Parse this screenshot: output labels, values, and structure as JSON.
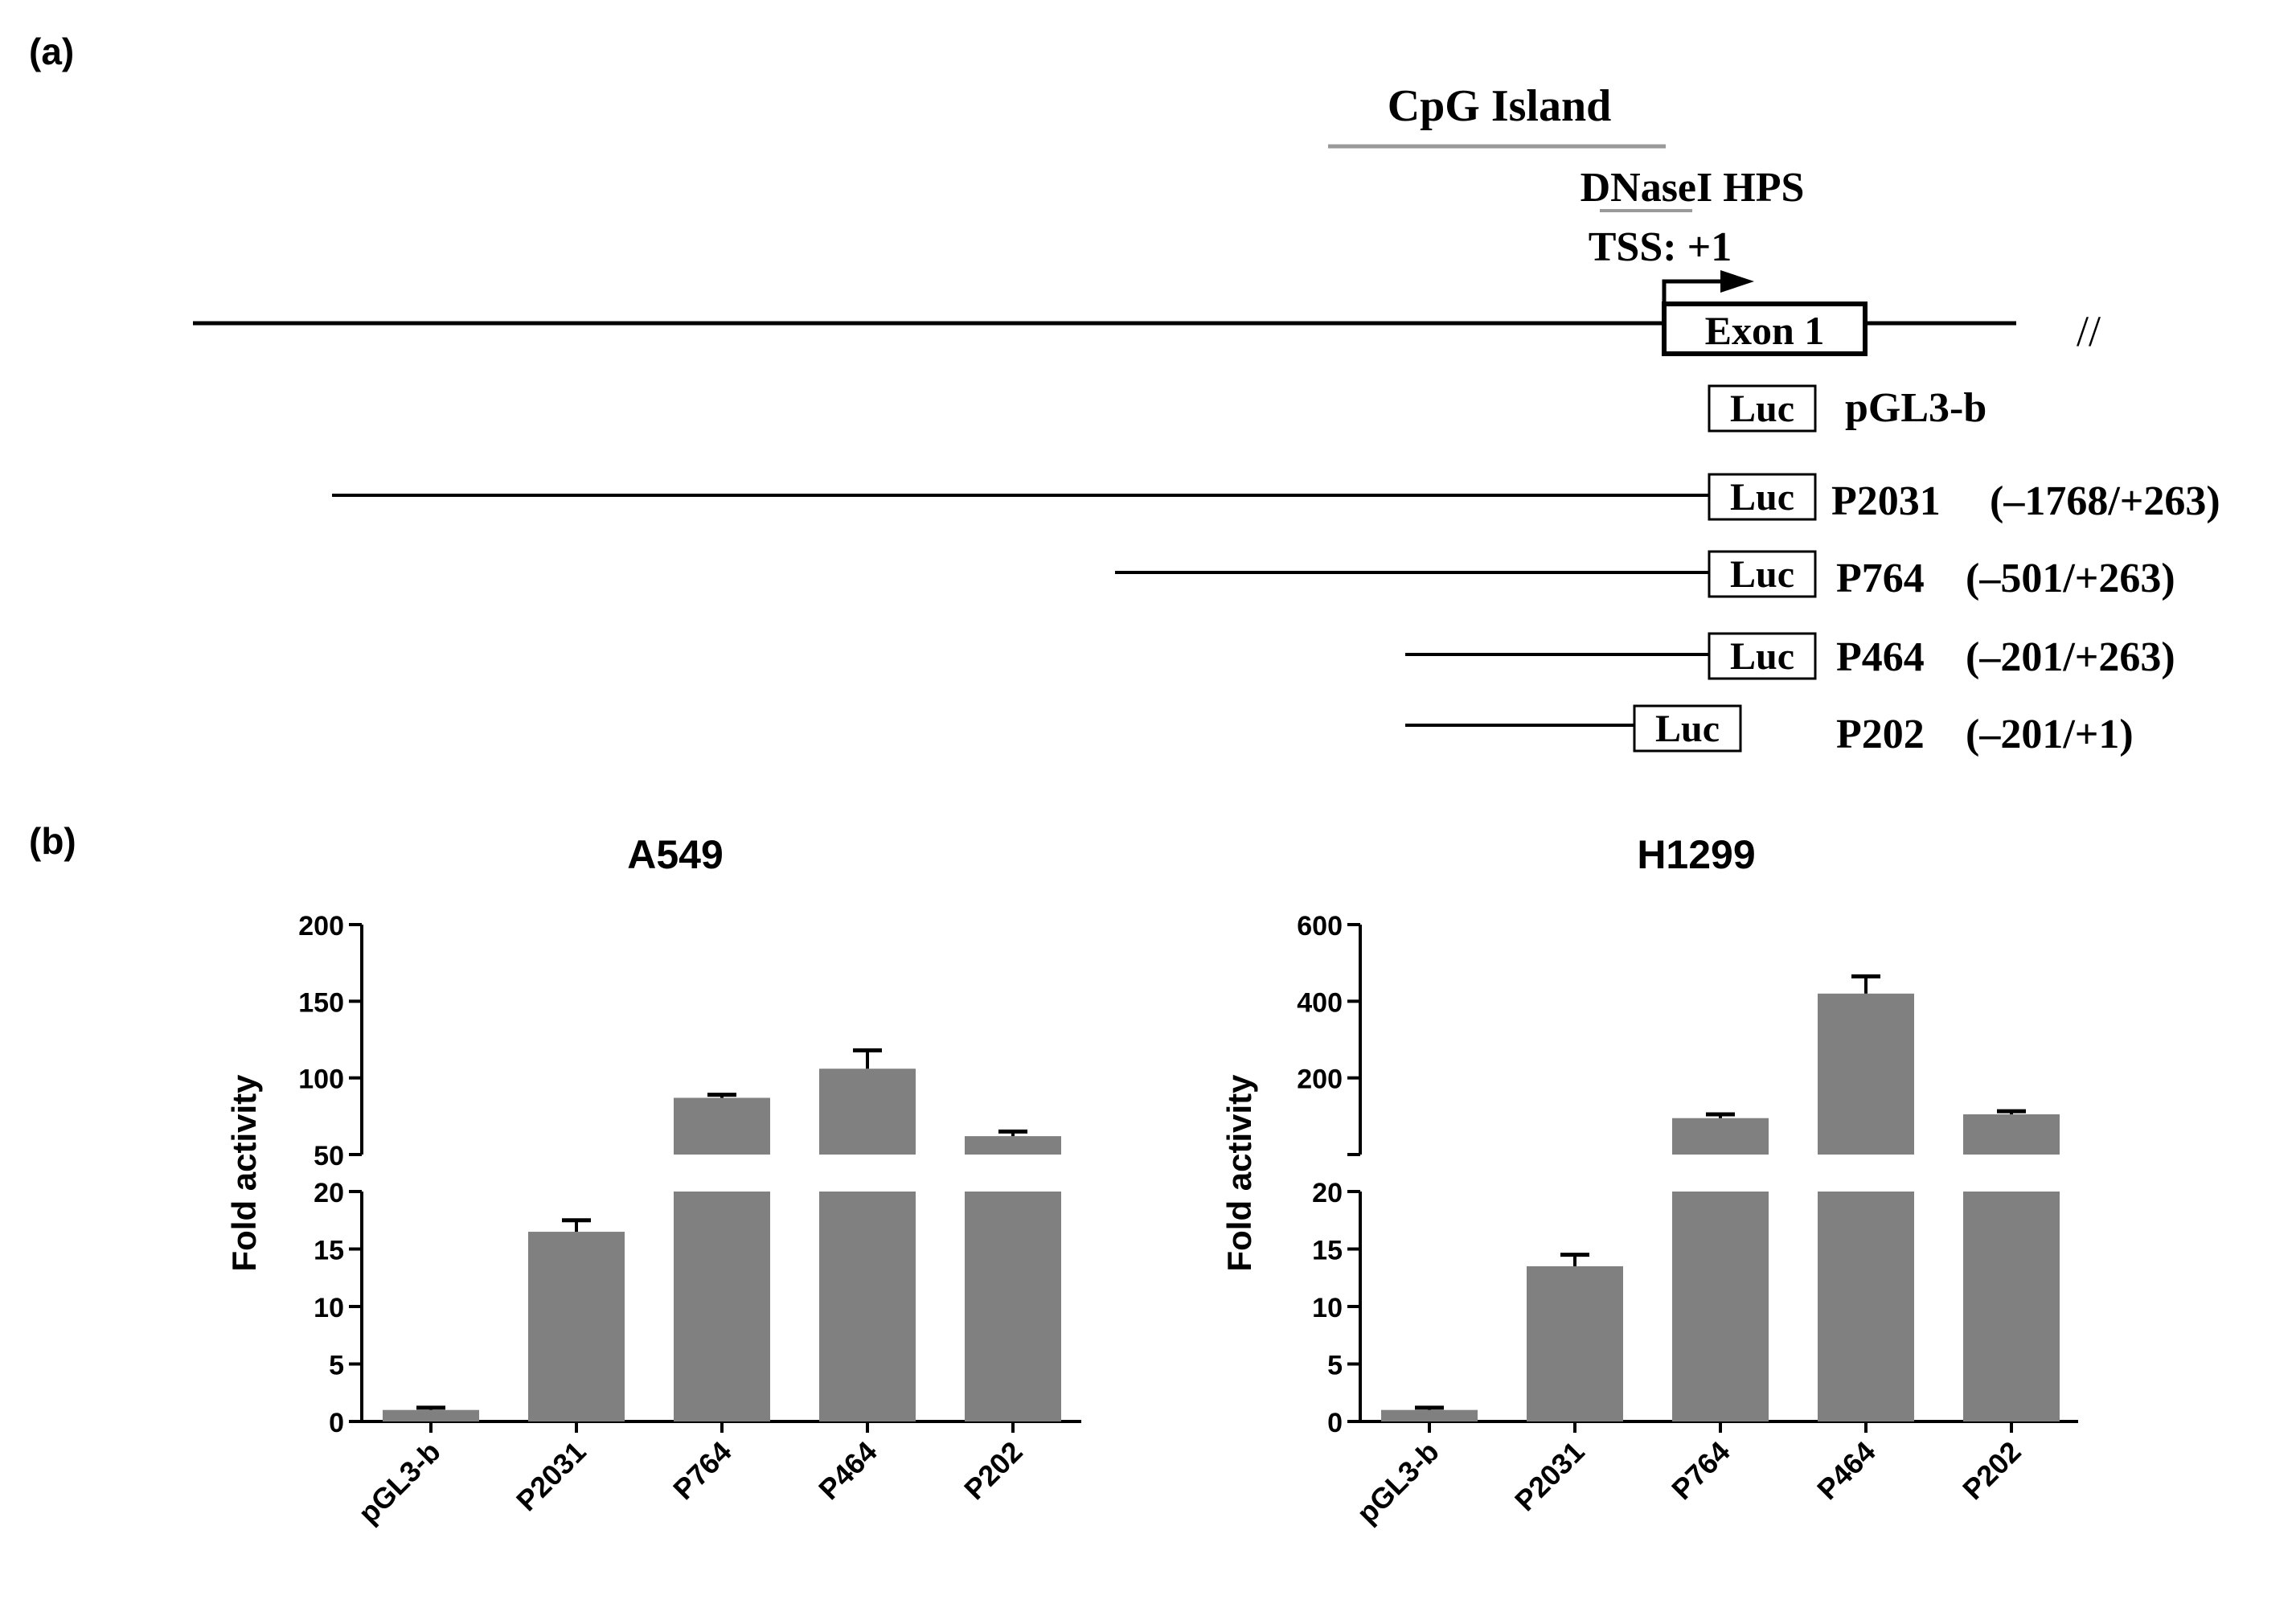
{
  "panel_a": {
    "label": "(a)",
    "cpg_label": "CpG Island",
    "dnase_label": "DNaseI HPS",
    "tss_label": "TSS: +1",
    "exon_label": "Exon 1",
    "break_mark": "//",
    "constructs": [
      {
        "box": "Luc",
        "name": "pGL3-b",
        "range": ""
      },
      {
        "box": "Luc",
        "name": "P2031",
        "range": "(–1768/+263)"
      },
      {
        "box": "Luc",
        "name": "P764",
        "range": "(–501/+263)"
      },
      {
        "box": "Luc",
        "name": "P464",
        "range": "(–201/+263)"
      },
      {
        "box": "Luc",
        "name": "P202",
        "range": "(–201/+1)"
      }
    ]
  },
  "panel_b": {
    "label": "(b)"
  },
  "chart_data": [
    {
      "type": "bar",
      "title": "A549",
      "ylabel": "Fold activity",
      "categories": [
        "pGL3-b",
        "P2031",
        "P764",
        "P464",
        "P202"
      ],
      "values": [
        1,
        16.5,
        87,
        106,
        62
      ],
      "errors": [
        0.2,
        1.0,
        2,
        12,
        3
      ],
      "lower_ylim": [
        0,
        20
      ],
      "upper_ylim": [
        50,
        200
      ],
      "lower_ticks": [
        0,
        5,
        10,
        15,
        20
      ],
      "upper_ticks": [
        50,
        100,
        150,
        200
      ],
      "bar_color": "#808080"
    },
    {
      "type": "bar",
      "title": "H1299",
      "ylabel": "Fold activity",
      "categories": [
        "pGL3-b",
        "P2031",
        "P764",
        "P464",
        "P202"
      ],
      "values": [
        1,
        13.5,
        95,
        420,
        105
      ],
      "errors": [
        0.2,
        1.0,
        10,
        45,
        8
      ],
      "lower_ylim": [
        0,
        20
      ],
      "upper_ylim": [
        0,
        600
      ],
      "lower_ticks": [
        0,
        5,
        10,
        15,
        20
      ],
      "upper_ticks": [
        200,
        400,
        600
      ],
      "bar_color": "#808080"
    }
  ]
}
